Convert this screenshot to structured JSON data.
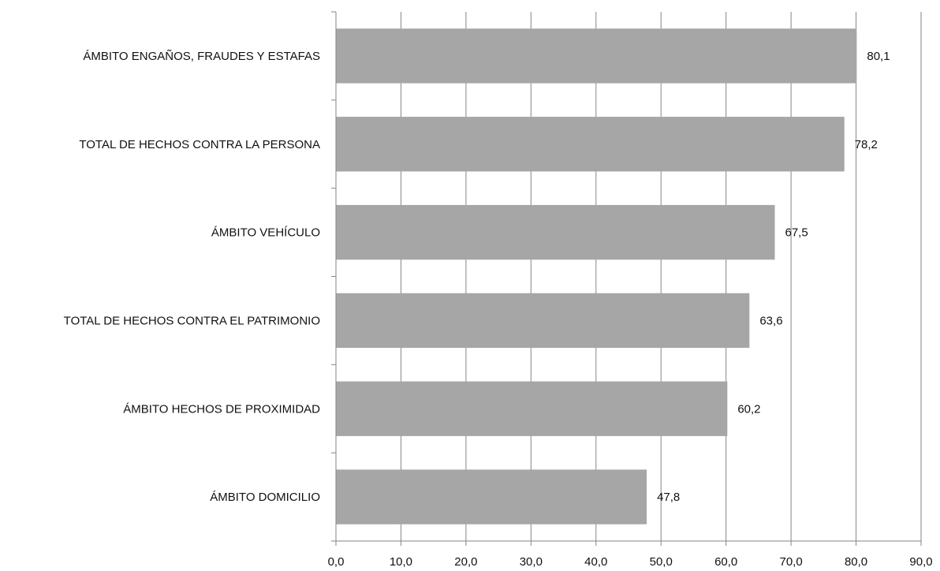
{
  "chart_data": {
    "type": "bar",
    "orientation": "horizontal",
    "categories": [
      "ÁMBITO ENGAÑOS, FRAUDES Y ESTAFAS",
      "TOTAL DE HECHOS CONTRA LA PERSONA",
      "ÁMBITO VEHÍCULO",
      "TOTAL DE HECHOS CONTRA EL PATRIMONIO",
      "ÁMBITO HECHOS DE PROXIMIDAD",
      "ÁMBITO DOMICILIO"
    ],
    "values": [
      80.1,
      78.2,
      67.5,
      63.6,
      60.2,
      47.8
    ],
    "value_labels": [
      "80,1",
      "78,2",
      "67,5",
      "63,6",
      "60,2",
      "47,8"
    ],
    "xlim": [
      0,
      90
    ],
    "x_ticks": [
      0,
      10,
      20,
      30,
      40,
      50,
      60,
      70,
      80,
      90
    ],
    "x_tick_labels": [
      "0,0",
      "10,0",
      "20,0",
      "30,0",
      "40,0",
      "50,0",
      "60,0",
      "70,0",
      "80,0",
      "90,0"
    ],
    "title": "",
    "xlabel": "",
    "ylabel": "",
    "grid": true,
    "legend": "none",
    "bar_color": "#a6a6a6",
    "grid_color": "#868686"
  }
}
